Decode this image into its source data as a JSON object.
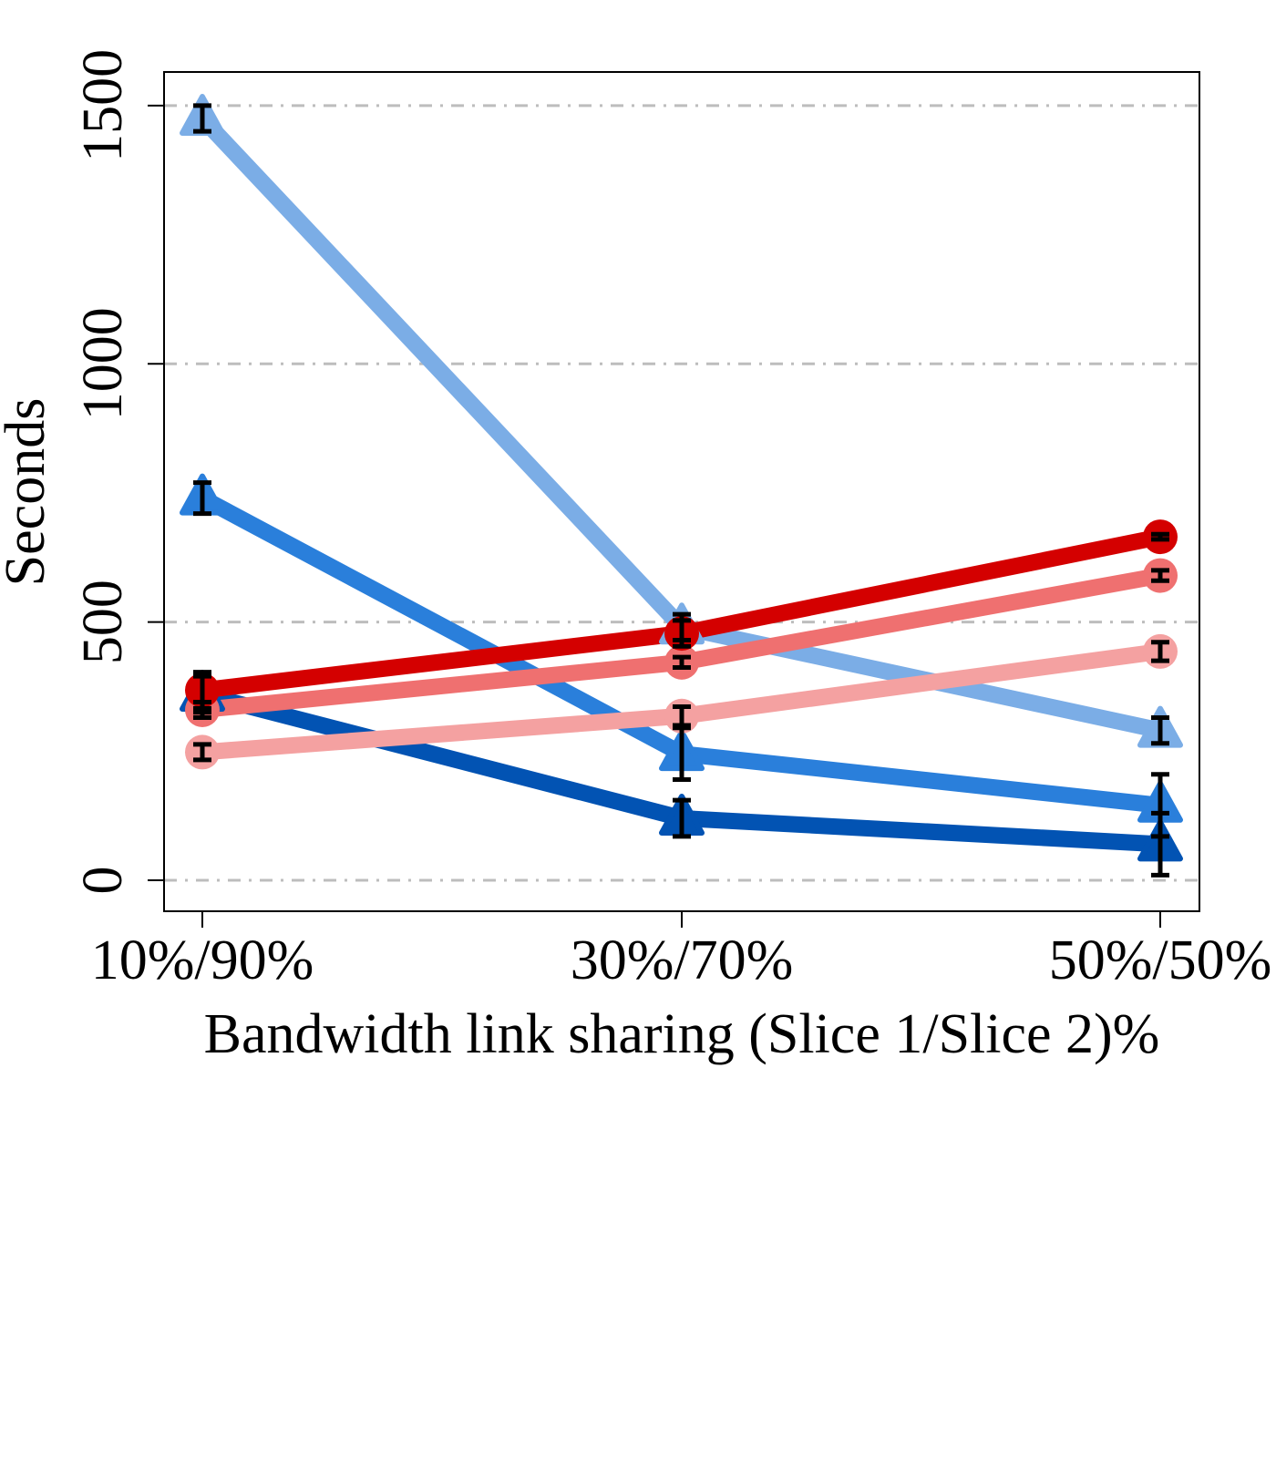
{
  "chart_data": {
    "type": "line",
    "categories": [
      "10%/90%",
      "30%/70%",
      "50%/50%"
    ],
    "xlabel": "Bandwidth link sharing (Slice 1/Slice 2)%",
    "ylabel": "Seconds",
    "ylim": [
      -60,
      1565
    ],
    "yticks": [
      0,
      500,
      1000,
      1500
    ],
    "grid": "horizontal dash-dot",
    "legend": "none",
    "series": [
      {
        "color": "#7bade6",
        "marker": "triangle",
        "values": [
          1475,
          490,
          290
        ],
        "err": [
          25,
          25,
          25
        ]
      },
      {
        "color": "#2a7fdb",
        "marker": "triangle",
        "values": [
          740,
          245,
          145
        ],
        "err": [
          30,
          50,
          60
        ]
      },
      {
        "color": "#0253b3",
        "marker": "triangle",
        "values": [
          360,
          120,
          70
        ],
        "err": [
          35,
          35,
          60
        ]
      },
      {
        "color": "#f4a1a1",
        "marker": "circle",
        "values": [
          248,
          318,
          443
        ],
        "err": [
          15,
          18,
          18
        ]
      },
      {
        "color": "#ef7070",
        "marker": "circle",
        "values": [
          330,
          422,
          590
        ],
        "err": [
          15,
          10,
          10
        ]
      },
      {
        "color": "#d40000",
        "marker": "circle",
        "values": [
          368,
          478,
          665
        ],
        "err": [
          35,
          25,
          5
        ]
      }
    ]
  }
}
